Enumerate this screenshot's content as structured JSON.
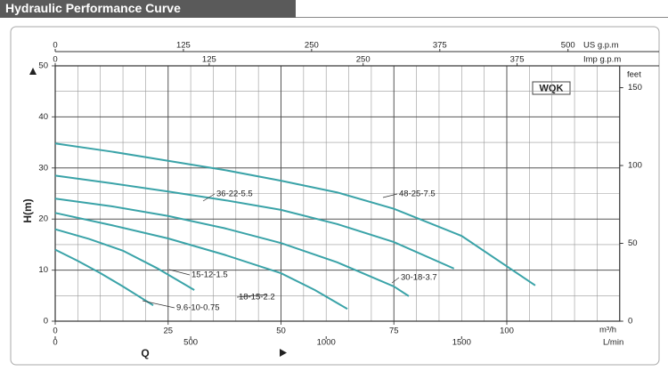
{
  "chart_data": {
    "type": "line",
    "title": "Hydraulic Performance Curve",
    "model": "WQK",
    "x_label": "Q",
    "y_label": "H(m)",
    "x_unit": "m³/h",
    "xlim": [
      0,
      125
    ],
    "xticks": [
      0,
      25,
      50,
      75,
      100
    ],
    "ylim": [
      0,
      50
    ],
    "yticks": [
      0,
      10,
      20,
      30,
      40,
      50
    ],
    "grid": true,
    "xgrid": [
      5,
      10,
      15,
      20,
      30,
      35,
      40,
      45,
      55,
      60,
      65,
      70,
      80,
      85,
      90,
      95,
      105,
      110,
      115,
      120
    ],
    "ygrid": [
      5,
      15,
      25,
      35,
      45
    ],
    "secondary_axes": [
      {
        "name": "US g.p.m",
        "position": "top",
        "lim": [
          0,
          550.4
        ],
        "ticks": [
          0,
          125,
          250,
          375,
          500
        ]
      },
      {
        "name": "Imp g.p.m",
        "position": "top",
        "lim": [
          0,
          458.3
        ],
        "ticks": [
          0,
          125,
          250,
          375
        ]
      },
      {
        "name": "L/min",
        "position": "bottom",
        "lim": [
          0,
          2083.3
        ],
        "ticks": [
          0,
          500,
          1000,
          1500
        ]
      },
      {
        "name": "feet",
        "position": "right",
        "lim": [
          0,
          164.04
        ],
        "ticks": [
          0,
          50,
          100,
          150
        ]
      }
    ],
    "series": [
      {
        "name": "48-25-7.5",
        "color": "#3aa3a8",
        "x": [
          0,
          12.5,
          25,
          37.5,
          50,
          62.5,
          75,
          90,
          106.3
        ],
        "values": [
          34.8,
          33.2,
          31.4,
          29.6,
          27.5,
          25.2,
          22,
          16.7,
          7
        ]
      },
      {
        "name": "36-22-5.5",
        "color": "#3aa3a8",
        "x": [
          0,
          12.5,
          25,
          37.5,
          50,
          62.5,
          75,
          88.3
        ],
        "values": [
          28.5,
          27,
          25.4,
          23.7,
          21.8,
          19,
          15.5,
          10.3
        ]
      },
      {
        "name": "30-18-3.7",
        "color": "#3aa3a8",
        "x": [
          0,
          12.5,
          25,
          37.5,
          50,
          62.5,
          75,
          78.3
        ],
        "values": [
          24,
          22.5,
          20.6,
          18.2,
          15.3,
          11.5,
          6.8,
          4.9
        ]
      },
      {
        "name": "18-15-2.2",
        "color": "#3aa3a8",
        "x": [
          0,
          12.5,
          25,
          37.5,
          50,
          57.5,
          64.7
        ],
        "values": [
          21.2,
          18.8,
          16.2,
          13,
          9.4,
          6.1,
          2.4
        ]
      },
      {
        "name": "15-12-1.5",
        "color": "#3aa3a8",
        "x": [
          0,
          7.5,
          15,
          22.5,
          30.8
        ],
        "values": [
          18,
          16.1,
          13.8,
          10.4,
          6.1
        ]
      },
      {
        "name": "9.6-10-0.75",
        "color": "#3aa3a8",
        "x": [
          0,
          5,
          10,
          15,
          21.7
        ],
        "values": [
          14,
          11.8,
          9.4,
          6.8,
          3.1
        ]
      }
    ]
  }
}
